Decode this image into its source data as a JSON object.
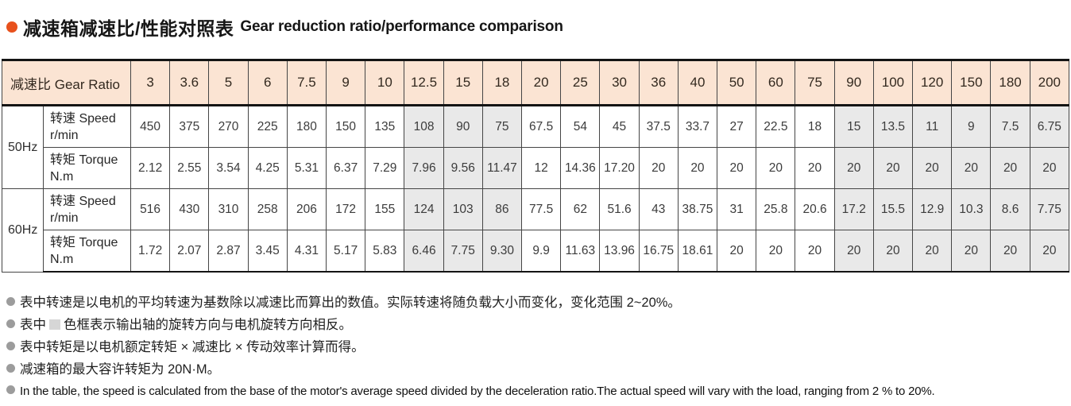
{
  "title": {
    "zh": "减速箱减速比/性能对照表",
    "en": "Gear reduction ratio/performance comparison"
  },
  "colors": {
    "accent_orange": "#e8511c",
    "header_bg": "#fbe4d3",
    "shaded_cell_bg": "#e9e9e9",
    "note_bullet_gray": "#9c9c9c",
    "border_dark": "#141414"
  },
  "table": {
    "corner_label": "减速比 Gear Ratio",
    "ratios": [
      "3",
      "3.6",
      "5",
      "6",
      "7.5",
      "9",
      "10",
      "12.5",
      "15",
      "18",
      "20",
      "25",
      "30",
      "36",
      "40",
      "50",
      "60",
      "75",
      "90",
      "100",
      "120",
      "150",
      "180",
      "200"
    ],
    "shaded_columns": [
      7,
      8,
      9,
      18,
      19,
      20,
      21,
      22,
      23
    ],
    "groups": [
      {
        "freq": "50Hz",
        "rows": [
          {
            "label": "转速 Speed",
            "unit": "r/min",
            "values": [
              "450",
              "375",
              "270",
              "225",
              "180",
              "150",
              "135",
              "108",
              "90",
              "75",
              "67.5",
              "54",
              "45",
              "37.5",
              "33.7",
              "27",
              "22.5",
              "18",
              "15",
              "13.5",
              "11",
              "9",
              "7.5",
              "6.75"
            ]
          },
          {
            "label": "转矩 Torque",
            "unit": "N.m",
            "values": [
              "2.12",
              "2.55",
              "3.54",
              "4.25",
              "5.31",
              "6.37",
              "7.29",
              "7.96",
              "9.56",
              "11.47",
              "12",
              "14.36",
              "17.20",
              "20",
              "20",
              "20",
              "20",
              "20",
              "20",
              "20",
              "20",
              "20",
              "20",
              "20"
            ]
          }
        ]
      },
      {
        "freq": "60Hz",
        "rows": [
          {
            "label": "转速 Speed",
            "unit": "r/min",
            "values": [
              "516",
              "430",
              "310",
              "258",
              "206",
              "172",
              "155",
              "124",
              "103",
              "86",
              "77.5",
              "62",
              "51.6",
              "43",
              "38.75",
              "31",
              "25.8",
              "20.6",
              "17.2",
              "15.5",
              "12.9",
              "10.3",
              "8.6",
              "7.75"
            ]
          },
          {
            "label": "转矩 Torque",
            "unit": "N.m",
            "values": [
              "1.72",
              "2.07",
              "2.87",
              "3.45",
              "4.31",
              "5.17",
              "5.83",
              "6.46",
              "7.75",
              "9.30",
              "9.9",
              "11.63",
              "13.96",
              "16.75",
              "18.61",
              "20",
              "20",
              "20",
              "20",
              "20",
              "20",
              "20",
              "20",
              "20"
            ]
          }
        ]
      }
    ]
  },
  "notes": [
    {
      "text": "表中转速是以电机的平均转速为基数除以减速比而算出的数值。实际转速将随负载大小而变化，变化范围 2~20%。"
    },
    {
      "pre": "表中",
      "swatch": true,
      "text": "色框表示输出轴的旋转方向与电机旋转方向相反。"
    },
    {
      "text": "表中转矩是以电机额定转矩 × 减速比 × 传动效率计算而得。"
    },
    {
      "text": "减速箱的最大容许转矩为 20N·M。"
    },
    {
      "text": "In the table, the speed is calculated from the base of the motor's average speed divided by the deceleration ratio.The actual speed will vary with the load, ranging from 2 % to 20%.",
      "lang": "en"
    }
  ]
}
